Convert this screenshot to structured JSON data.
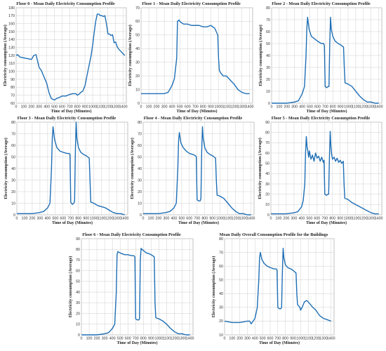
{
  "chart_data": [
    {
      "type": "line",
      "title": "Floor 0 - Mean Daily Electricity Consumption Profile",
      "xlabel": "Time of Day (Minutes)",
      "ylabel": "Electricity consumption (Average)",
      "xlim": [
        0,
        1440
      ],
      "ylim": [
        60,
        180
      ],
      "xticks": [
        0,
        100,
        200,
        300,
        400,
        500,
        600,
        700,
        800,
        900,
        1000,
        1100,
        1200,
        1300,
        1400
      ],
      "yticks": [
        60,
        70,
        80,
        90,
        100,
        110,
        120,
        130,
        140,
        150,
        160,
        170,
        180
      ],
      "grid": true,
      "color": "#1f6fb5",
      "x": [
        0,
        20,
        50,
        100,
        150,
        200,
        230,
        260,
        280,
        300,
        330,
        360,
        400,
        430,
        460,
        500,
        530,
        560,
        600,
        650,
        700,
        740,
        780,
        800,
        830,
        850,
        870,
        900,
        920,
        950,
        980,
        1000,
        1020,
        1040,
        1060,
        1080,
        1100,
        1120,
        1140,
        1160,
        1180,
        1200,
        1220,
        1240,
        1260,
        1280,
        1300,
        1320,
        1340,
        1360,
        1380,
        1400,
        1420
      ],
      "y": [
        120,
        121,
        118,
        117,
        116,
        115,
        120,
        121,
        113,
        105,
        101,
        94,
        85,
        73,
        66,
        64,
        66,
        67,
        69,
        69,
        71,
        72,
        72,
        70,
        72,
        74,
        75,
        82,
        92,
        106,
        120,
        133,
        149,
        163,
        172,
        172,
        170,
        170,
        169,
        170,
        160,
        147,
        147,
        145,
        146,
        136,
        137,
        131,
        128,
        126,
        124,
        122,
        120
      ]
    },
    {
      "type": "line",
      "title": "Floor 1 - Mean Daily Electricity Consumption Profile",
      "xlabel": "Time of Day (Minutes)",
      "ylabel": "Electricity consumption (Average)",
      "xlim": [
        0,
        1440
      ],
      "ylim": [
        0,
        70
      ],
      "xticks": [
        0,
        100,
        200,
        300,
        400,
        500,
        600,
        700,
        800,
        900,
        1000,
        1100,
        1200,
        1300,
        1400
      ],
      "yticks": [
        0,
        10,
        20,
        30,
        40,
        50,
        60,
        70
      ],
      "grid": true,
      "color": "#1f6fb5",
      "x": [
        0,
        100,
        200,
        300,
        350,
        400,
        430,
        460,
        470,
        490,
        500,
        520,
        550,
        600,
        650,
        700,
        750,
        800,
        850,
        900,
        950,
        990,
        1000,
        1010,
        1030,
        1060,
        1100,
        1150,
        1200,
        1250,
        1300,
        1350,
        1400
      ],
      "y": [
        7,
        7,
        7,
        7,
        8,
        13,
        18,
        33,
        60,
        61,
        60,
        59,
        58,
        58,
        57,
        57,
        57,
        56,
        56,
        57,
        55,
        50,
        33,
        24,
        22,
        20,
        20,
        17,
        14,
        10,
        8,
        7,
        7
      ]
    },
    {
      "type": "line",
      "title": "Floor 2 - Mean Daily Electricity Consumption Profile",
      "xlabel": "Time of Day (Minutes)",
      "ylabel": "Electricity consumption (Average)",
      "xlim": [
        0,
        1440
      ],
      "ylim": [
        0,
        80
      ],
      "xticks": [
        0,
        100,
        200,
        300,
        400,
        500,
        600,
        700,
        800,
        900,
        1000,
        1100,
        1200,
        1300,
        1400
      ],
      "yticks": [
        0,
        10,
        20,
        30,
        40,
        50,
        60,
        70,
        80
      ],
      "grid": true,
      "color": "#1f6fb5",
      "x": [
        0,
        100,
        200,
        300,
        350,
        400,
        430,
        450,
        460,
        470,
        490,
        520,
        560,
        600,
        650,
        680,
        690,
        700,
        720,
        740,
        750,
        760,
        770,
        780,
        800,
        830,
        870,
        900,
        920,
        940,
        950,
        960,
        1000,
        1050,
        1100,
        1150,
        1200,
        1250,
        1300,
        1350,
        1400
      ],
      "y": [
        0,
        0,
        0,
        1,
        2,
        8,
        14,
        40,
        62,
        72,
        62,
        56,
        54,
        52,
        50,
        50,
        48,
        14,
        13,
        14,
        14,
        50,
        72,
        62,
        56,
        52,
        50,
        49,
        48,
        47,
        30,
        17,
        16,
        14,
        10,
        6,
        3,
        1,
        1,
        0,
        0
      ]
    },
    {
      "type": "line",
      "title": "Floor 3 - Mean Daily Electricity Consumption Profile",
      "xlabel": "Time of Day (Minutes)",
      "ylabel": "Electricity consumption (Average)",
      "xlim": [
        0,
        1440
      ],
      "ylim": [
        0,
        80
      ],
      "xticks": [
        0,
        100,
        200,
        300,
        400,
        500,
        600,
        700,
        800,
        900,
        1000,
        1100,
        1200,
        1300,
        1400
      ],
      "yticks": [
        0,
        10,
        20,
        30,
        40,
        50,
        60,
        70,
        80
      ],
      "grid": true,
      "color": "#1f6fb5",
      "x": [
        0,
        100,
        200,
        300,
        350,
        400,
        430,
        450,
        460,
        470,
        490,
        520,
        560,
        600,
        650,
        680,
        690,
        700,
        720,
        740,
        750,
        760,
        770,
        780,
        800,
        830,
        870,
        900,
        920,
        940,
        950,
        960,
        1000,
        1050,
        1100,
        1150,
        1200,
        1250,
        1300,
        1350,
        1400
      ],
      "y": [
        1,
        1,
        1,
        2,
        3,
        6,
        10,
        40,
        66,
        76,
        65,
        58,
        55,
        54,
        53,
        53,
        52,
        11,
        9,
        10,
        12,
        55,
        80,
        66,
        58,
        54,
        52,
        51,
        50,
        49,
        30,
        11,
        10,
        8,
        7,
        6,
        4,
        2,
        1,
        1,
        0
      ]
    },
    {
      "type": "line",
      "title": "Floor 4 - Mean Daily Electricity Consumption Profile",
      "xlabel": "Time of Day (Minutes)",
      "ylabel": "Electricity consumption (Average)",
      "xlim": [
        0,
        1440
      ],
      "ylim": [
        0,
        80
      ],
      "xticks": [
        0,
        100,
        200,
        300,
        400,
        500,
        600,
        700,
        800,
        900,
        1000,
        1100,
        1200,
        1300,
        1400
      ],
      "yticks": [
        0,
        10,
        20,
        30,
        40,
        50,
        60,
        70,
        80
      ],
      "grid": true,
      "color": "#1f6fb5",
      "x": [
        0,
        100,
        200,
        300,
        350,
        400,
        430,
        450,
        460,
        470,
        490,
        520,
        560,
        600,
        650,
        680,
        690,
        700,
        720,
        740,
        750,
        760,
        770,
        780,
        800,
        830,
        870,
        900,
        920,
        940,
        950,
        960,
        1000,
        1050,
        1100,
        1150,
        1200,
        1250,
        1300,
        1350,
        1400
      ],
      "y": [
        1,
        1,
        1,
        2,
        3,
        6,
        10,
        40,
        64,
        71,
        62,
        58,
        55,
        53,
        52,
        51,
        50,
        13,
        12,
        12,
        14,
        55,
        76,
        66,
        58,
        54,
        52,
        51,
        50,
        49,
        30,
        17,
        16,
        14,
        10,
        6,
        3,
        1,
        1,
        0,
        0
      ]
    },
    {
      "type": "line",
      "title": "Floor 5 - Mean Daily Electricity Consumption Profile",
      "xlabel": "Time of Day (Minutes)",
      "ylabel": "Electricity consumption (Average)",
      "xlim": [
        0,
        1440
      ],
      "ylim": [
        0,
        90
      ],
      "xticks": [
        0,
        100,
        200,
        300,
        400,
        500,
        600,
        700,
        800,
        900,
        1000,
        1100,
        1200,
        1300,
        1400
      ],
      "yticks": [
        0,
        10,
        20,
        30,
        40,
        50,
        60,
        70,
        80,
        90
      ],
      "grid": true,
      "color": "#1f6fb5",
      "x": [
        0,
        100,
        200,
        300,
        350,
        400,
        420,
        440,
        450,
        460,
        470,
        480,
        490,
        500,
        520,
        540,
        560,
        580,
        600,
        620,
        640,
        660,
        680,
        690,
        700,
        720,
        740,
        750,
        760,
        770,
        780,
        790,
        800,
        820,
        840,
        860,
        880,
        900,
        920,
        940,
        950,
        960,
        1000,
        1050,
        1100,
        1150,
        1200,
        1250,
        1300,
        1350,
        1400
      ],
      "y": [
        1,
        1,
        1,
        2,
        3,
        8,
        14,
        30,
        60,
        76,
        66,
        62,
        56,
        62,
        54,
        58,
        52,
        60,
        55,
        57,
        52,
        56,
        51,
        53,
        20,
        19,
        20,
        20,
        55,
        81,
        66,
        58,
        54,
        56,
        52,
        55,
        51,
        53,
        50,
        52,
        30,
        16,
        15,
        12,
        10,
        8,
        6,
        4,
        2,
        1,
        1
      ]
    },
    {
      "type": "line",
      "title": "Floor 6 - Mean Daily Electricity Consumption Profile",
      "xlabel": "Time of Day (Minutes)",
      "ylabel": "Electricity consumption (Average)",
      "xlim": [
        0,
        1440
      ],
      "ylim": [
        0,
        90
      ],
      "xticks": [
        0,
        100,
        200,
        300,
        400,
        500,
        600,
        700,
        800,
        900,
        1000,
        1100,
        1200,
        1300,
        1400
      ],
      "yticks": [
        0,
        10,
        20,
        30,
        40,
        50,
        60,
        70,
        80,
        90
      ],
      "grid": true,
      "color": "#1f6fb5",
      "x": [
        0,
        100,
        200,
        300,
        350,
        400,
        430,
        450,
        460,
        470,
        490,
        520,
        560,
        600,
        650,
        680,
        690,
        700,
        720,
        740,
        750,
        760,
        770,
        780,
        800,
        830,
        870,
        900,
        920,
        940,
        950,
        960,
        1000,
        1050,
        1100,
        1150,
        1200,
        1250,
        1300,
        1350,
        1400
      ],
      "y": [
        0,
        0,
        0,
        1,
        2,
        6,
        10,
        40,
        75,
        78,
        77,
        76,
        75,
        75,
        74,
        74,
        73,
        15,
        14,
        14,
        15,
        70,
        81,
        80,
        79,
        77,
        76,
        75,
        74,
        73,
        30,
        16,
        15,
        13,
        10,
        6,
        3,
        1,
        1,
        0,
        0
      ]
    },
    {
      "type": "line",
      "title": "Mean Daily Overall Consumption Profile for the Buildings",
      "xlabel": "Time of Day (Minutes)",
      "ylabel": "Electricity consumption (Average)",
      "xlim": [
        0,
        1440
      ],
      "ylim": [
        10,
        80
      ],
      "xticks": [
        0,
        100,
        200,
        300,
        400,
        500,
        600,
        700,
        800,
        900,
        1000,
        1100,
        1200,
        1300,
        1400
      ],
      "yticks": [
        10,
        20,
        30,
        40,
        50,
        60,
        70,
        80
      ],
      "grid": true,
      "color": "#1f6fb5",
      "x": [
        0,
        100,
        200,
        300,
        330,
        350,
        400,
        430,
        450,
        460,
        470,
        490,
        520,
        560,
        600,
        650,
        680,
        690,
        700,
        720,
        740,
        750,
        760,
        770,
        780,
        800,
        830,
        870,
        900,
        920,
        940,
        950,
        960,
        990,
        1000,
        1020,
        1050,
        1080,
        1100,
        1130,
        1160,
        1200,
        1250,
        1300,
        1350,
        1400
      ],
      "y": [
        20,
        19,
        19,
        20,
        20,
        18,
        22,
        30,
        50,
        66,
        70,
        65,
        62,
        60,
        59,
        58,
        58,
        57,
        30,
        29,
        29,
        30,
        55,
        73,
        66,
        61,
        59,
        58,
        57,
        56,
        55,
        40,
        32,
        30,
        28,
        30,
        34,
        35,
        34,
        32,
        30,
        28,
        24,
        22,
        21,
        20
      ]
    }
  ]
}
